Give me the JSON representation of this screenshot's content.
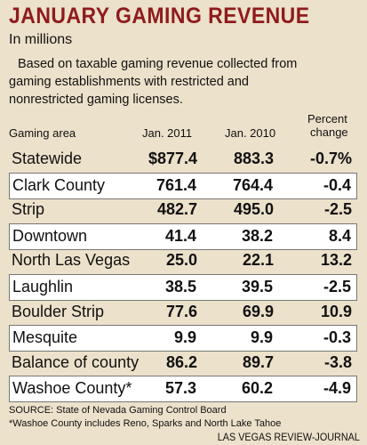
{
  "header": {
    "title": "JANUARY GAMING REVENUE",
    "subtitle": "In millions",
    "description": [
      "Based on taxable gaming revenue collected from",
      "gaming establishments with restricted and",
      "nonrestricted gaming licenses."
    ]
  },
  "table": {
    "columns": [
      "Gaming area",
      "Jan. 2011",
      "Jan. 2010",
      [
        "Percent",
        "change"
      ]
    ],
    "rows": [
      [
        "Statewide",
        "$877.4",
        "883.3",
        "-0.7%"
      ],
      [
        "Clark County",
        "761.4",
        "764.4",
        "-0.4"
      ],
      [
        "Strip",
        "482.7",
        "495.0",
        "-2.5"
      ],
      [
        "Downtown",
        "41.4",
        "38.2",
        "8.4"
      ],
      [
        "North Las Vegas",
        "25.0",
        "22.1",
        "13.2"
      ],
      [
        "Laughlin",
        "38.5",
        "39.5",
        "-2.5"
      ],
      [
        "Boulder Strip",
        "77.6",
        "69.9",
        "10.9"
      ],
      [
        "Mesquite",
        "9.9",
        "9.9",
        "-0.3"
      ],
      [
        "Balance of county",
        "86.2",
        "89.7",
        "-3.8"
      ],
      [
        "Washoe County*",
        "57.3",
        "60.2",
        "-4.9"
      ]
    ]
  },
  "footer": {
    "source": "SOURCE: State of Nevada Gaming Control Board",
    "note": "*Washoe County includes Reno, Sparks and North Lake Tahoe",
    "credit": "LAS VEGAS REVIEW-JOURNAL"
  }
}
